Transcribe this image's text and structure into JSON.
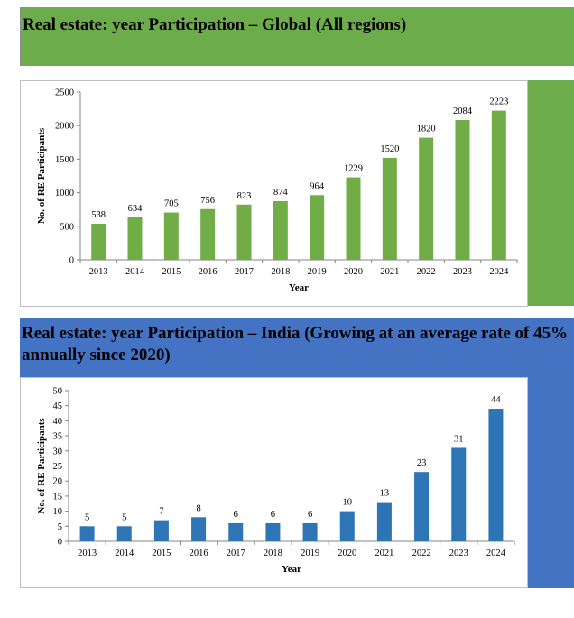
{
  "sections": [
    {
      "title": "Real estate: year Participation – Global (All regions)",
      "chart_data": {
        "type": "bar",
        "categories": [
          "2013",
          "2014",
          "2015",
          "2016",
          "2017",
          "2018",
          "2019",
          "2020",
          "2021",
          "2022",
          "2023",
          "2024"
        ],
        "values": [
          538,
          634,
          705,
          756,
          823,
          874,
          964,
          1229,
          1520,
          1820,
          2084,
          2223
        ],
        "title": "",
        "xlabel": "Year",
        "ylabel": "No. of RE Participants",
        "ylim": [
          0,
          2500
        ],
        "yticks": [
          0,
          500,
          1000,
          1500,
          2000,
          2500
        ],
        "bar_color": "#70ad47",
        "grid": false,
        "legend": "none"
      }
    },
    {
      "title": "Real estate: year Participation – India (Growing at an average rate of 45% annually since 2020)",
      "chart_data": {
        "type": "bar",
        "categories": [
          "2013",
          "2014",
          "2015",
          "2016",
          "2017",
          "2018",
          "2019",
          "2020",
          "2021",
          "2022",
          "2023",
          "2024"
        ],
        "values": [
          5,
          5,
          7,
          8,
          6,
          6,
          6,
          10,
          13,
          23,
          31,
          44
        ],
        "title": "",
        "xlabel": "Year",
        "ylabel": "No. of RE Participants",
        "ylim": [
          0,
          50
        ],
        "yticks": [
          0,
          5,
          10,
          15,
          20,
          25,
          30,
          35,
          40,
          45,
          50
        ],
        "bar_color": "#2e75b6",
        "grid": false,
        "legend": "none"
      }
    }
  ],
  "colors": {
    "green_banner": "#6dac4a",
    "blue_banner": "#4473c4"
  }
}
